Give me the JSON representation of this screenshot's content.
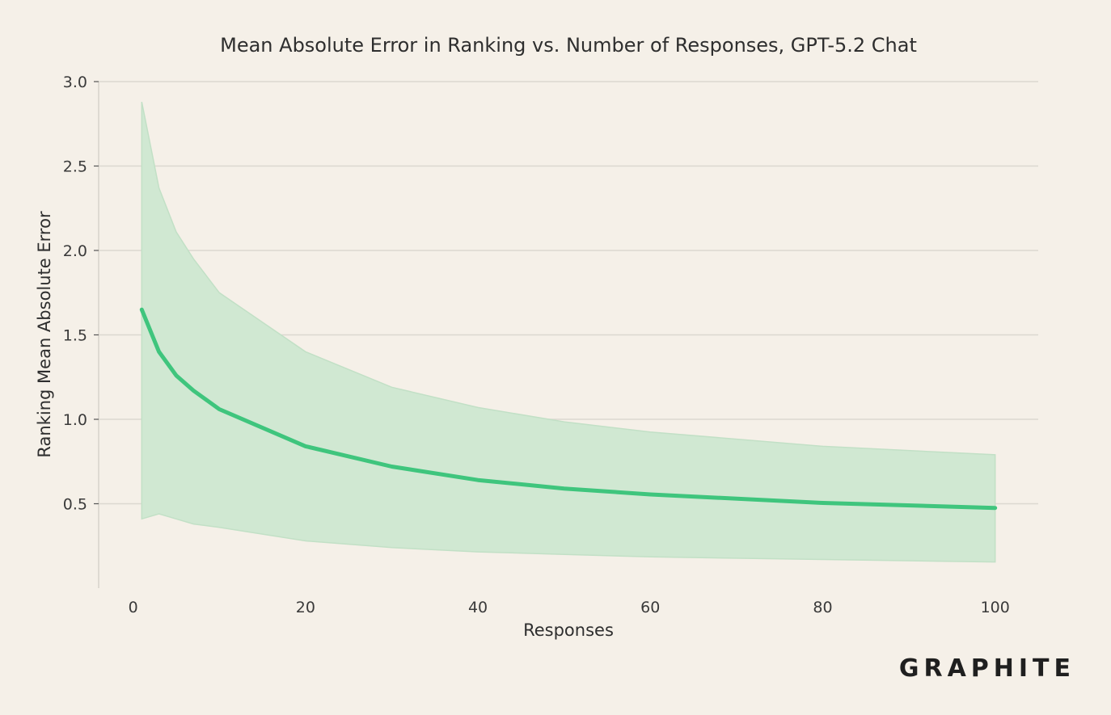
{
  "brand": {
    "logo_text": "GRAPHITE"
  },
  "chart_data": {
    "type": "line",
    "title": "Mean Absolute Error in Ranking vs. Number of Responses, GPT-5.2 Chat",
    "xlabel": "Responses",
    "ylabel": "Ranking Mean Absolute Error",
    "xlim": [
      -4,
      105
    ],
    "ylim": [
      0,
      3.0
    ],
    "x_ticks": [
      0,
      20,
      40,
      60,
      80,
      100
    ],
    "y_ticks": [
      0.5,
      1.0,
      1.5,
      2.0,
      2.5,
      3.0
    ],
    "x_tick_labels": [
      "0",
      "20",
      "40",
      "60",
      "80",
      "100"
    ],
    "y_tick_labels": [
      "0.5",
      "1.0",
      "1.5",
      "2.0",
      "2.5",
      "3.0"
    ],
    "grid": true,
    "series": [
      {
        "name": "GPT-5.2 Chat",
        "color": "#3fc57d",
        "band_color": "#d0e8d2",
        "x": [
          1,
          3,
          5,
          7,
          10,
          20,
          30,
          40,
          50,
          60,
          80,
          100
        ],
        "values": [
          1.65,
          1.4,
          1.26,
          1.17,
          1.06,
          0.84,
          0.72,
          0.64,
          0.59,
          0.555,
          0.505,
          0.475
        ],
        "upper": [
          2.88,
          2.37,
          2.11,
          1.95,
          1.75,
          1.4,
          1.19,
          1.07,
          0.985,
          0.925,
          0.84,
          0.79
        ],
        "lower": [
          0.41,
          0.44,
          0.41,
          0.38,
          0.36,
          0.28,
          0.24,
          0.215,
          0.2,
          0.185,
          0.17,
          0.155
        ]
      }
    ]
  }
}
